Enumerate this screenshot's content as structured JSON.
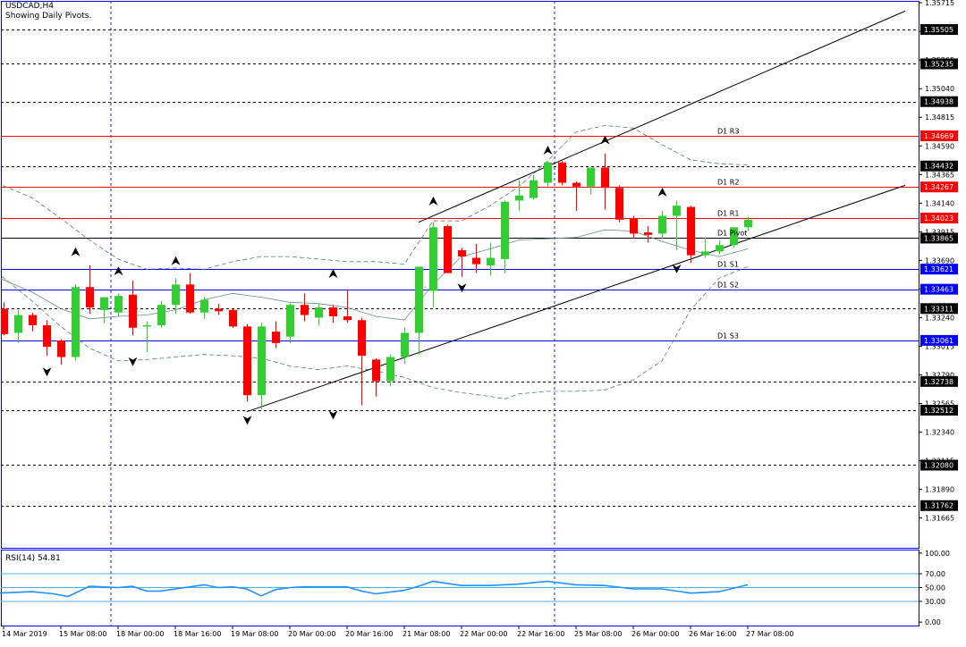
{
  "header": {
    "symbol_tf": "USDCAD,H4",
    "subtitle": "Showing Daily Pivots."
  },
  "rsi_header": {
    "label": "RSI(14) 54.81"
  },
  "colors": {
    "bull": "#32cd32",
    "bear": "#ff0000",
    "grid_dash": "#000000",
    "sep_dash": "#2020ff",
    "pivot_red": "#ff0000",
    "pivot_blue": "#0000ff",
    "rsi_line": "#1e90ff",
    "rsi_level": "#4fb0e0",
    "border": "#0000ff"
  },
  "chart_data": [
    {
      "type": "candlestick",
      "title": "USDCAD,H4",
      "subtitle": "Showing Daily Pivots.",
      "ylim": [
        1.3143,
        1.3573
      ],
      "y_ticks": [
        "1.35715",
        "1.35490",
        "1.35265",
        "1.35040",
        "1.34815",
        "1.34590",
        "1.34365",
        "1.34140",
        "1.33915",
        "1.33690",
        "1.33465",
        "1.33240",
        "1.33015",
        "1.32790",
        "1.32565",
        "1.32340",
        "1.32115",
        "1.31890",
        "1.31665"
      ],
      "x_labels": [
        "14 Mar 2019",
        "15 Mar 08:00",
        "18 Mar 00:00",
        "18 Mar 16:00",
        "19 Mar 08:00",
        "20 Mar 00:00",
        "20 Mar 16:00",
        "21 Mar 08:00",
        "22 Mar 00:00",
        "22 Mar 16:00",
        "25 Mar 08:00",
        "26 Mar 00:00",
        "26 Mar 16:00",
        "27 Mar 08:00"
      ],
      "price_boxes": [
        {
          "label": "1.35505",
          "color": "#000000"
        },
        {
          "label": "1.35235",
          "color": "#000000"
        },
        {
          "label": "1.34938",
          "color": "#000000"
        },
        {
          "label": "1.34669",
          "color": "#ff0000"
        },
        {
          "label": "1.34432",
          "color": "#000000"
        },
        {
          "label": "1.34267",
          "color": "#ff0000"
        },
        {
          "label": "1.34023",
          "color": "#ff0000"
        },
        {
          "label": "1.33865",
          "color": "#000000"
        },
        {
          "label": "1.33621",
          "color": "#0000ff"
        },
        {
          "label": "1.33463",
          "color": "#0000ff"
        },
        {
          "label": "1.33311",
          "color": "#000000"
        },
        {
          "label": "1.33061",
          "color": "#0000ff"
        },
        {
          "label": "1.32738",
          "color": "#000000"
        },
        {
          "label": "1.32512",
          "color": "#000000"
        },
        {
          "label": "1.32080",
          "color": "#000000"
        },
        {
          "label": "1.31762",
          "color": "#000000"
        }
      ],
      "dashed_levels": [
        1.35505,
        1.35235,
        1.34938,
        1.34432,
        1.33311,
        1.32738,
        1.32512,
        1.3208,
        1.31762
      ],
      "pivots": [
        {
          "name": "D1 R3",
          "value": 1.34669,
          "color": "#ff0000"
        },
        {
          "name": "D1 R2",
          "value": 1.34267,
          "color": "#ff0000"
        },
        {
          "name": "D1 R1",
          "value": 1.34023,
          "color": "#ff0000"
        },
        {
          "name": "D1 Pivot",
          "value": 1.33865,
          "color": "#000000"
        },
        {
          "name": "D1 S1",
          "value": 1.33621,
          "color": "#0000ff"
        },
        {
          "name": "D1 S2",
          "value": 1.33463,
          "color": "#0000ff"
        },
        {
          "name": "D1 S3",
          "value": 1.33061,
          "color": "#0000ff"
        }
      ],
      "day_separators": [
        7.5,
        38.5
      ],
      "candles": [
        {
          "o": 1.3331,
          "h": 1.3336,
          "l": 1.331,
          "c": 1.3311
        },
        {
          "o": 1.3312,
          "h": 1.333,
          "l": 1.3304,
          "c": 1.3326
        },
        {
          "o": 1.3326,
          "h": 1.3328,
          "l": 1.3313,
          "c": 1.3318
        },
        {
          "o": 1.3318,
          "h": 1.3322,
          "l": 1.3294,
          "c": 1.3301
        },
        {
          "o": 1.3306,
          "h": 1.3307,
          "l": 1.3287,
          "c": 1.3293
        },
        {
          "o": 1.3293,
          "h": 1.335,
          "l": 1.329,
          "c": 1.3348
        },
        {
          "o": 1.3348,
          "h": 1.3365,
          "l": 1.3327,
          "c": 1.3332
        },
        {
          "o": 1.333,
          "h": 1.334,
          "l": 1.332,
          "c": 1.334
        },
        {
          "o": 1.3328,
          "h": 1.3343,
          "l": 1.3325,
          "c": 1.3341
        },
        {
          "o": 1.3342,
          "h": 1.3353,
          "l": 1.331,
          "c": 1.3316
        },
        {
          "o": 1.3317,
          "h": 1.3321,
          "l": 1.3297,
          "c": 1.3318
        },
        {
          "o": 1.3318,
          "h": 1.3337,
          "l": 1.3316,
          "c": 1.3334
        },
        {
          "o": 1.3334,
          "h": 1.3355,
          "l": 1.3327,
          "c": 1.335
        },
        {
          "o": 1.335,
          "h": 1.3359,
          "l": 1.3327,
          "c": 1.3328
        },
        {
          "o": 1.3328,
          "h": 1.334,
          "l": 1.3323,
          "c": 1.3338
        },
        {
          "o": 1.3331,
          "h": 1.3335,
          "l": 1.3326,
          "c": 1.3329
        },
        {
          "o": 1.333,
          "h": 1.3331,
          "l": 1.3316,
          "c": 1.3317
        },
        {
          "o": 1.3317,
          "h": 1.3319,
          "l": 1.3258,
          "c": 1.3263
        },
        {
          "o": 1.3263,
          "h": 1.332,
          "l": 1.3252,
          "c": 1.3317
        },
        {
          "o": 1.3313,
          "h": 1.3321,
          "l": 1.33,
          "c": 1.3304
        },
        {
          "o": 1.3309,
          "h": 1.3335,
          "l": 1.3304,
          "c": 1.3334
        },
        {
          "o": 1.3334,
          "h": 1.3343,
          "l": 1.3321,
          "c": 1.3326
        },
        {
          "o": 1.3324,
          "h": 1.3335,
          "l": 1.3318,
          "c": 1.3332
        },
        {
          "o": 1.3332,
          "h": 1.3334,
          "l": 1.332,
          "c": 1.3325
        },
        {
          "o": 1.3325,
          "h": 1.3346,
          "l": 1.332,
          "c": 1.3322
        },
        {
          "o": 1.3322,
          "h": 1.3324,
          "l": 1.3255,
          "c": 1.3294
        },
        {
          "o": 1.3291,
          "h": 1.3292,
          "l": 1.3262,
          "c": 1.3274
        },
        {
          "o": 1.3274,
          "h": 1.3295,
          "l": 1.327,
          "c": 1.3293
        },
        {
          "o": 1.3293,
          "h": 1.3316,
          "l": 1.3288,
          "c": 1.3312
        },
        {
          "o": 1.3312,
          "h": 1.3364,
          "l": 1.3295,
          "c": 1.3364
        },
        {
          "o": 1.3345,
          "h": 1.3399,
          "l": 1.3332,
          "c": 1.3395
        },
        {
          "o": 1.3396,
          "h": 1.3397,
          "l": 1.3359,
          "c": 1.3359
        },
        {
          "o": 1.3377,
          "h": 1.3379,
          "l": 1.3356,
          "c": 1.3372
        },
        {
          "o": 1.3371,
          "h": 1.3382,
          "l": 1.3359,
          "c": 1.3366
        },
        {
          "o": 1.3365,
          "h": 1.3383,
          "l": 1.3357,
          "c": 1.3371
        },
        {
          "o": 1.337,
          "h": 1.3416,
          "l": 1.3359,
          "c": 1.3415
        },
        {
          "o": 1.3416,
          "h": 1.3432,
          "l": 1.3408,
          "c": 1.342
        },
        {
          "o": 1.3418,
          "h": 1.3436,
          "l": 1.3417,
          "c": 1.3432
        },
        {
          "o": 1.343,
          "h": 1.3447,
          "l": 1.3427,
          "c": 1.3446
        },
        {
          "o": 1.3446,
          "h": 1.3447,
          "l": 1.3428,
          "c": 1.343
        },
        {
          "o": 1.343,
          "h": 1.3431,
          "l": 1.3408,
          "c": 1.3427
        },
        {
          "o": 1.3427,
          "h": 1.3442,
          "l": 1.3421,
          "c": 1.3442
        },
        {
          "o": 1.3442,
          "h": 1.3453,
          "l": 1.3409,
          "c": 1.3426
        },
        {
          "o": 1.3426,
          "h": 1.3428,
          "l": 1.3399,
          "c": 1.3401
        },
        {
          "o": 1.3402,
          "h": 1.3404,
          "l": 1.3386,
          "c": 1.339
        },
        {
          "o": 1.3391,
          "h": 1.3396,
          "l": 1.3383,
          "c": 1.3389
        },
        {
          "o": 1.339,
          "h": 1.3408,
          "l": 1.3386,
          "c": 1.3404
        },
        {
          "o": 1.3404,
          "h": 1.3416,
          "l": 1.3377,
          "c": 1.3412
        },
        {
          "o": 1.3411,
          "h": 1.3412,
          "l": 1.3367,
          "c": 1.3373
        },
        {
          "o": 1.3373,
          "h": 1.3387,
          "l": 1.3371,
          "c": 1.3376
        },
        {
          "o": 1.3376,
          "h": 1.3385,
          "l": 1.3374,
          "c": 1.3381
        },
        {
          "o": 1.3381,
          "h": 1.3395,
          "l": 1.3379,
          "c": 1.3395
        },
        {
          "o": 1.3395,
          "h": 1.3403,
          "l": 1.3392,
          "c": 1.3401
        }
      ],
      "fractals_up": [
        {
          "i": 5,
          "price": 1.3375
        },
        {
          "i": 8,
          "price": 1.336
        },
        {
          "i": 12,
          "price": 1.3368
        },
        {
          "i": 23,
          "price": 1.3358
        },
        {
          "i": 30,
          "price": 1.3415
        },
        {
          "i": 38,
          "price": 1.3455
        },
        {
          "i": 42,
          "price": 1.3463
        },
        {
          "i": 46,
          "price": 1.3422
        }
      ],
      "fractals_down": [
        {
          "i": 3,
          "price": 1.3282
        },
        {
          "i": 9,
          "price": 1.329
        },
        {
          "i": 17,
          "price": 1.3244
        },
        {
          "i": 23,
          "price": 1.3248
        },
        {
          "i": 32,
          "price": 1.3348
        },
        {
          "i": 47,
          "price": 1.3363
        }
      ],
      "trendlines": [
        {
          "x1": 17,
          "y1": 1.325,
          "x2": 63,
          "y2": 1.3428
        },
        {
          "x1": 29,
          "y1": 1.3399,
          "x2": 63,
          "y2": 1.3565
        }
      ],
      "envelope_upper": [
        {
          "x": -0.5,
          "y": 1.343
        },
        {
          "x": 2,
          "y": 1.3418
        },
        {
          "x": 4,
          "y": 1.3402
        },
        {
          "x": 6,
          "y": 1.3385
        },
        {
          "x": 8,
          "y": 1.337
        },
        {
          "x": 10,
          "y": 1.3362
        },
        {
          "x": 12,
          "y": 1.3363
        },
        {
          "x": 14,
          "y": 1.3362
        },
        {
          "x": 16,
          "y": 1.3368
        },
        {
          "x": 18,
          "y": 1.3372
        },
        {
          "x": 20,
          "y": 1.3372
        },
        {
          "x": 22,
          "y": 1.337
        },
        {
          "x": 24,
          "y": 1.3368
        },
        {
          "x": 26,
          "y": 1.3368
        },
        {
          "x": 28,
          "y": 1.3366
        },
        {
          "x": 30,
          "y": 1.34
        },
        {
          "x": 32,
          "y": 1.34
        },
        {
          "x": 34,
          "y": 1.3412
        },
        {
          "x": 36,
          "y": 1.3427
        },
        {
          "x": 38,
          "y": 1.3447
        },
        {
          "x": 40,
          "y": 1.347
        },
        {
          "x": 42,
          "y": 1.3475
        },
        {
          "x": 44,
          "y": 1.3473
        },
        {
          "x": 46,
          "y": 1.346
        },
        {
          "x": 48,
          "y": 1.3448
        },
        {
          "x": 50,
          "y": 1.3445
        },
        {
          "x": 52,
          "y": 1.3444
        }
      ],
      "envelope_lower": [
        {
          "x": -0.5,
          "y": 1.336
        },
        {
          "x": 2,
          "y": 1.3337
        },
        {
          "x": 4,
          "y": 1.3317
        },
        {
          "x": 6,
          "y": 1.33
        },
        {
          "x": 8,
          "y": 1.329
        },
        {
          "x": 10,
          "y": 1.3291
        },
        {
          "x": 12,
          "y": 1.3293
        },
        {
          "x": 14,
          "y": 1.3295
        },
        {
          "x": 16,
          "y": 1.3294
        },
        {
          "x": 18,
          "y": 1.3292
        },
        {
          "x": 20,
          "y": 1.3286
        },
        {
          "x": 22,
          "y": 1.3283
        },
        {
          "x": 24,
          "y": 1.3286
        },
        {
          "x": 26,
          "y": 1.3282
        },
        {
          "x": 28,
          "y": 1.3277
        },
        {
          "x": 30,
          "y": 1.3269
        },
        {
          "x": 32,
          "y": 1.3265
        },
        {
          "x": 34,
          "y": 1.3262
        },
        {
          "x": 35,
          "y": 1.326
        },
        {
          "x": 36,
          "y": 1.3264
        },
        {
          "x": 38,
          "y": 1.3266
        },
        {
          "x": 40,
          "y": 1.3266
        },
        {
          "x": 42,
          "y": 1.3267
        },
        {
          "x": 44,
          "y": 1.3275
        },
        {
          "x": 46,
          "y": 1.329
        },
        {
          "x": 48,
          "y": 1.333
        },
        {
          "x": 50,
          "y": 1.3355
        },
        {
          "x": 52,
          "y": 1.3364
        }
      ],
      "envelope_mid": [
        {
          "x": -0.5,
          "y": 1.3356
        },
        {
          "x": 2,
          "y": 1.3344
        },
        {
          "x": 4,
          "y": 1.3331
        },
        {
          "x": 6,
          "y": 1.3323
        },
        {
          "x": 8,
          "y": 1.3325
        },
        {
          "x": 10,
          "y": 1.3326
        },
        {
          "x": 12,
          "y": 1.333
        },
        {
          "x": 14,
          "y": 1.3338
        },
        {
          "x": 16,
          "y": 1.3343
        },
        {
          "x": 18,
          "y": 1.334
        },
        {
          "x": 20,
          "y": 1.3336
        },
        {
          "x": 22,
          "y": 1.3335
        },
        {
          "x": 24,
          "y": 1.3332
        },
        {
          "x": 26,
          "y": 1.3325
        },
        {
          "x": 28,
          "y": 1.3322
        },
        {
          "x": 30,
          "y": 1.335
        },
        {
          "x": 32,
          "y": 1.3372
        },
        {
          "x": 34,
          "y": 1.3378
        },
        {
          "x": 36,
          "y": 1.3385
        },
        {
          "x": 38,
          "y": 1.3386
        },
        {
          "x": 40,
          "y": 1.3387
        },
        {
          "x": 42,
          "y": 1.3393
        },
        {
          "x": 44,
          "y": 1.3392
        },
        {
          "x": 46,
          "y": 1.3384
        },
        {
          "x": 48,
          "y": 1.3377
        },
        {
          "x": 50,
          "y": 1.3372
        },
        {
          "x": 52,
          "y": 1.3378
        }
      ]
    },
    {
      "type": "line",
      "title": "RSI(14) 54.81",
      "ylim": [
        -5,
        105
      ],
      "y_ticks": [
        "100.00",
        "70.00",
        "50.00",
        "30.00",
        "0.00"
      ],
      "levels": [
        70,
        50,
        30
      ],
      "series": [
        {
          "name": "RSI(14)",
          "x": [
            -0.5,
            2,
            3.5,
            4.5,
            6,
            8,
            9,
            10,
            11,
            12,
            14,
            15,
            16,
            17,
            18,
            19,
            20,
            21,
            22,
            24,
            25,
            26,
            28,
            29,
            30,
            32,
            34,
            36,
            38,
            40,
            42,
            44,
            46,
            48,
            50,
            52
          ],
          "values": [
            42,
            44,
            41,
            37,
            52,
            50,
            52,
            45,
            45,
            48,
            54,
            50,
            51,
            48,
            38,
            47,
            50,
            51,
            51,
            51,
            45,
            41,
            46,
            52,
            59,
            53,
            53,
            55,
            59,
            54,
            53,
            48,
            48,
            42,
            44,
            54
          ]
        }
      ]
    }
  ]
}
